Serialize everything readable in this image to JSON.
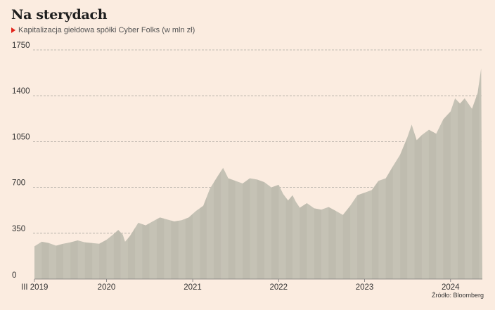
{
  "header": {
    "title": "Na sterydach",
    "subtitle": "Kapitalizacja giełdowa spółki Cyber Folks (w mln zł)"
  },
  "footer": {
    "source": "Źródło: Bloomberg"
  },
  "colors": {
    "background": "#fbece0",
    "area_fill": "#c5c2b5",
    "area_band": "#b9b6a9",
    "grid": "#b0aaa2",
    "accent": "#e2231a"
  },
  "chart_data": {
    "type": "area",
    "title": "Na sterydach",
    "subtitle": "Kapitalizacja giełdowa spółki Cyber Folks (w mln zł)",
    "xlabel": "",
    "ylabel": "",
    "unit": "mln zł",
    "grid": true,
    "ylim": [
      0,
      1750
    ],
    "xlim": [
      "2019-03-01",
      "2024-05-15"
    ],
    "yticks": [
      0,
      350,
      700,
      1050,
      1400,
      1750
    ],
    "ytick_labels": [
      "0",
      "350",
      "700",
      "1050",
      "1400",
      "1750"
    ],
    "xticks": [
      {
        "label": "III 2019",
        "date": "2019-03-01"
      },
      {
        "label": "2020",
        "date": "2020-01-01"
      },
      {
        "label": "2021",
        "date": "2021-01-01"
      },
      {
        "label": "2022",
        "date": "2022-01-01"
      },
      {
        "label": "2023",
        "date": "2023-01-01"
      },
      {
        "label": "2024",
        "date": "2024-01-01"
      }
    ],
    "series": [
      {
        "name": "",
        "points": [
          [
            "2019-03-01",
            250
          ],
          [
            "2019-04-01",
            285
          ],
          [
            "2019-05-01",
            275
          ],
          [
            "2019-06-01",
            255
          ],
          [
            "2019-07-01",
            270
          ],
          [
            "2019-08-01",
            280
          ],
          [
            "2019-09-01",
            295
          ],
          [
            "2019-10-01",
            280
          ],
          [
            "2019-11-01",
            275
          ],
          [
            "2019-12-01",
            270
          ],
          [
            "2020-01-01",
            300
          ],
          [
            "2020-02-01",
            345
          ],
          [
            "2020-02-20",
            375
          ],
          [
            "2020-03-10",
            340
          ],
          [
            "2020-03-20",
            285
          ],
          [
            "2020-04-10",
            330
          ],
          [
            "2020-05-15",
            430
          ],
          [
            "2020-06-15",
            410
          ],
          [
            "2020-07-15",
            440
          ],
          [
            "2020-08-15",
            470
          ],
          [
            "2020-09-15",
            455
          ],
          [
            "2020-10-15",
            440
          ],
          [
            "2020-11-15",
            450
          ],
          [
            "2020-12-15",
            470
          ],
          [
            "2021-01-15",
            520
          ],
          [
            "2021-02-15",
            560
          ],
          [
            "2021-03-15",
            690
          ],
          [
            "2021-04-15",
            780
          ],
          [
            "2021-05-10",
            850
          ],
          [
            "2021-06-01",
            770
          ],
          [
            "2021-07-01",
            750
          ],
          [
            "2021-08-01",
            730
          ],
          [
            "2021-09-01",
            770
          ],
          [
            "2021-10-01",
            760
          ],
          [
            "2021-11-01",
            740
          ],
          [
            "2021-12-01",
            700
          ],
          [
            "2022-01-01",
            720
          ],
          [
            "2022-01-20",
            650
          ],
          [
            "2022-02-10",
            600
          ],
          [
            "2022-03-01",
            640
          ],
          [
            "2022-03-15",
            590
          ],
          [
            "2022-04-01",
            545
          ],
          [
            "2022-05-01",
            580
          ],
          [
            "2022-06-01",
            540
          ],
          [
            "2022-07-01",
            530
          ],
          [
            "2022-08-01",
            550
          ],
          [
            "2022-09-01",
            520
          ],
          [
            "2022-10-01",
            490
          ],
          [
            "2022-11-01",
            560
          ],
          [
            "2022-12-01",
            640
          ],
          [
            "2023-01-01",
            660
          ],
          [
            "2023-02-01",
            680
          ],
          [
            "2023-03-01",
            750
          ],
          [
            "2023-04-01",
            770
          ],
          [
            "2023-05-01",
            860
          ],
          [
            "2023-06-01",
            950
          ],
          [
            "2023-07-01",
            1080
          ],
          [
            "2023-07-20",
            1180
          ],
          [
            "2023-08-10",
            1060
          ],
          [
            "2023-09-01",
            1100
          ],
          [
            "2023-10-01",
            1140
          ],
          [
            "2023-11-01",
            1110
          ],
          [
            "2023-12-01",
            1220
          ],
          [
            "2024-01-01",
            1280
          ],
          [
            "2024-01-20",
            1380
          ],
          [
            "2024-02-10",
            1340
          ],
          [
            "2024-03-01",
            1380
          ],
          [
            "2024-04-01",
            1300
          ],
          [
            "2024-04-25",
            1420
          ],
          [
            "2024-05-10",
            1610
          ]
        ]
      }
    ]
  }
}
